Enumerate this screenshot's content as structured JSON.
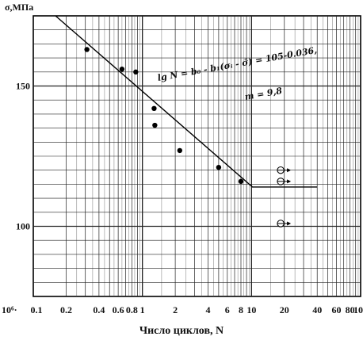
{
  "chart_data": {
    "type": "scatter",
    "title": "",
    "xlabel": "Число циклов, N",
    "ylabel": "σ,МПа",
    "x_scale": "log",
    "xlim": [
      0.1,
      100
    ],
    "ylim": [
      75,
      175
    ],
    "x_unit_label": "10⁶·",
    "x_ticks": [
      0.1,
      0.2,
      0.4,
      0.6,
      0.8,
      1,
      2,
      4,
      6,
      8,
      10,
      20,
      40,
      60,
      80,
      100
    ],
    "x_tick_labels": [
      "0.1",
      "0.2",
      "0.4",
      "0.6",
      "0.8",
      "1",
      "2",
      "4",
      "6",
      "8",
      "10",
      "20",
      "40",
      "60",
      "80",
      "100"
    ],
    "y_ticks": [
      100,
      150
    ],
    "y_tick_labels": [
      "100",
      "150"
    ],
    "grid": true,
    "series": [
      {
        "marker": "filled-circle",
        "x": [
          0.31,
          0.65,
          0.87,
          1.28,
          1.3,
          2.2,
          5.0,
          8.0
        ],
        "y": [
          163,
          156,
          155,
          142,
          136,
          127,
          121,
          116
        ]
      },
      {
        "marker": "open-circle-runout",
        "x": [
          18.5,
          18.5,
          18.5
        ],
        "y": [
          120,
          116,
          101
        ]
      }
    ],
    "fit_line": {
      "x": [
        0.16,
        10.2,
        40
      ],
      "y": [
        175,
        114,
        114
      ]
    },
    "annotation_lines": [
      "lg N = b₀ - b₁(σᵢ - σ̄) = 105-0.036,",
      "m = 9,8"
    ]
  }
}
